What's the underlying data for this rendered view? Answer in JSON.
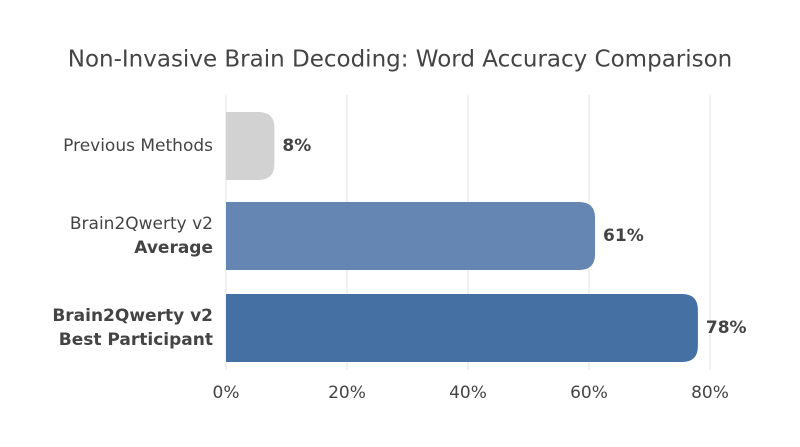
{
  "chart_data": {
    "type": "bar",
    "orientation": "horizontal",
    "title": "Non-Invasive Brain Decoding: Word Accuracy Comparison",
    "categories": [
      [
        "Previous Methods"
      ],
      [
        "Brain2Qwerty v2",
        "Average"
      ],
      [
        "Brain2Qwerty v2",
        "Best Participant"
      ]
    ],
    "values": [
      8,
      61,
      78
    ],
    "value_labels": [
      "8%",
      "61%",
      "78%"
    ],
    "colors": [
      "#d2d2d2",
      "#6586b2",
      "#4470a4"
    ],
    "xlim": [
      0,
      80
    ],
    "xticks": [
      {
        "value": 0,
        "label": "0%"
      },
      {
        "value": 20,
        "label": "20%"
      },
      {
        "value": 40,
        "label": "40%"
      },
      {
        "value": 60,
        "label": "60%"
      },
      {
        "value": 80,
        "label": "80%"
      }
    ],
    "grid": true
  }
}
